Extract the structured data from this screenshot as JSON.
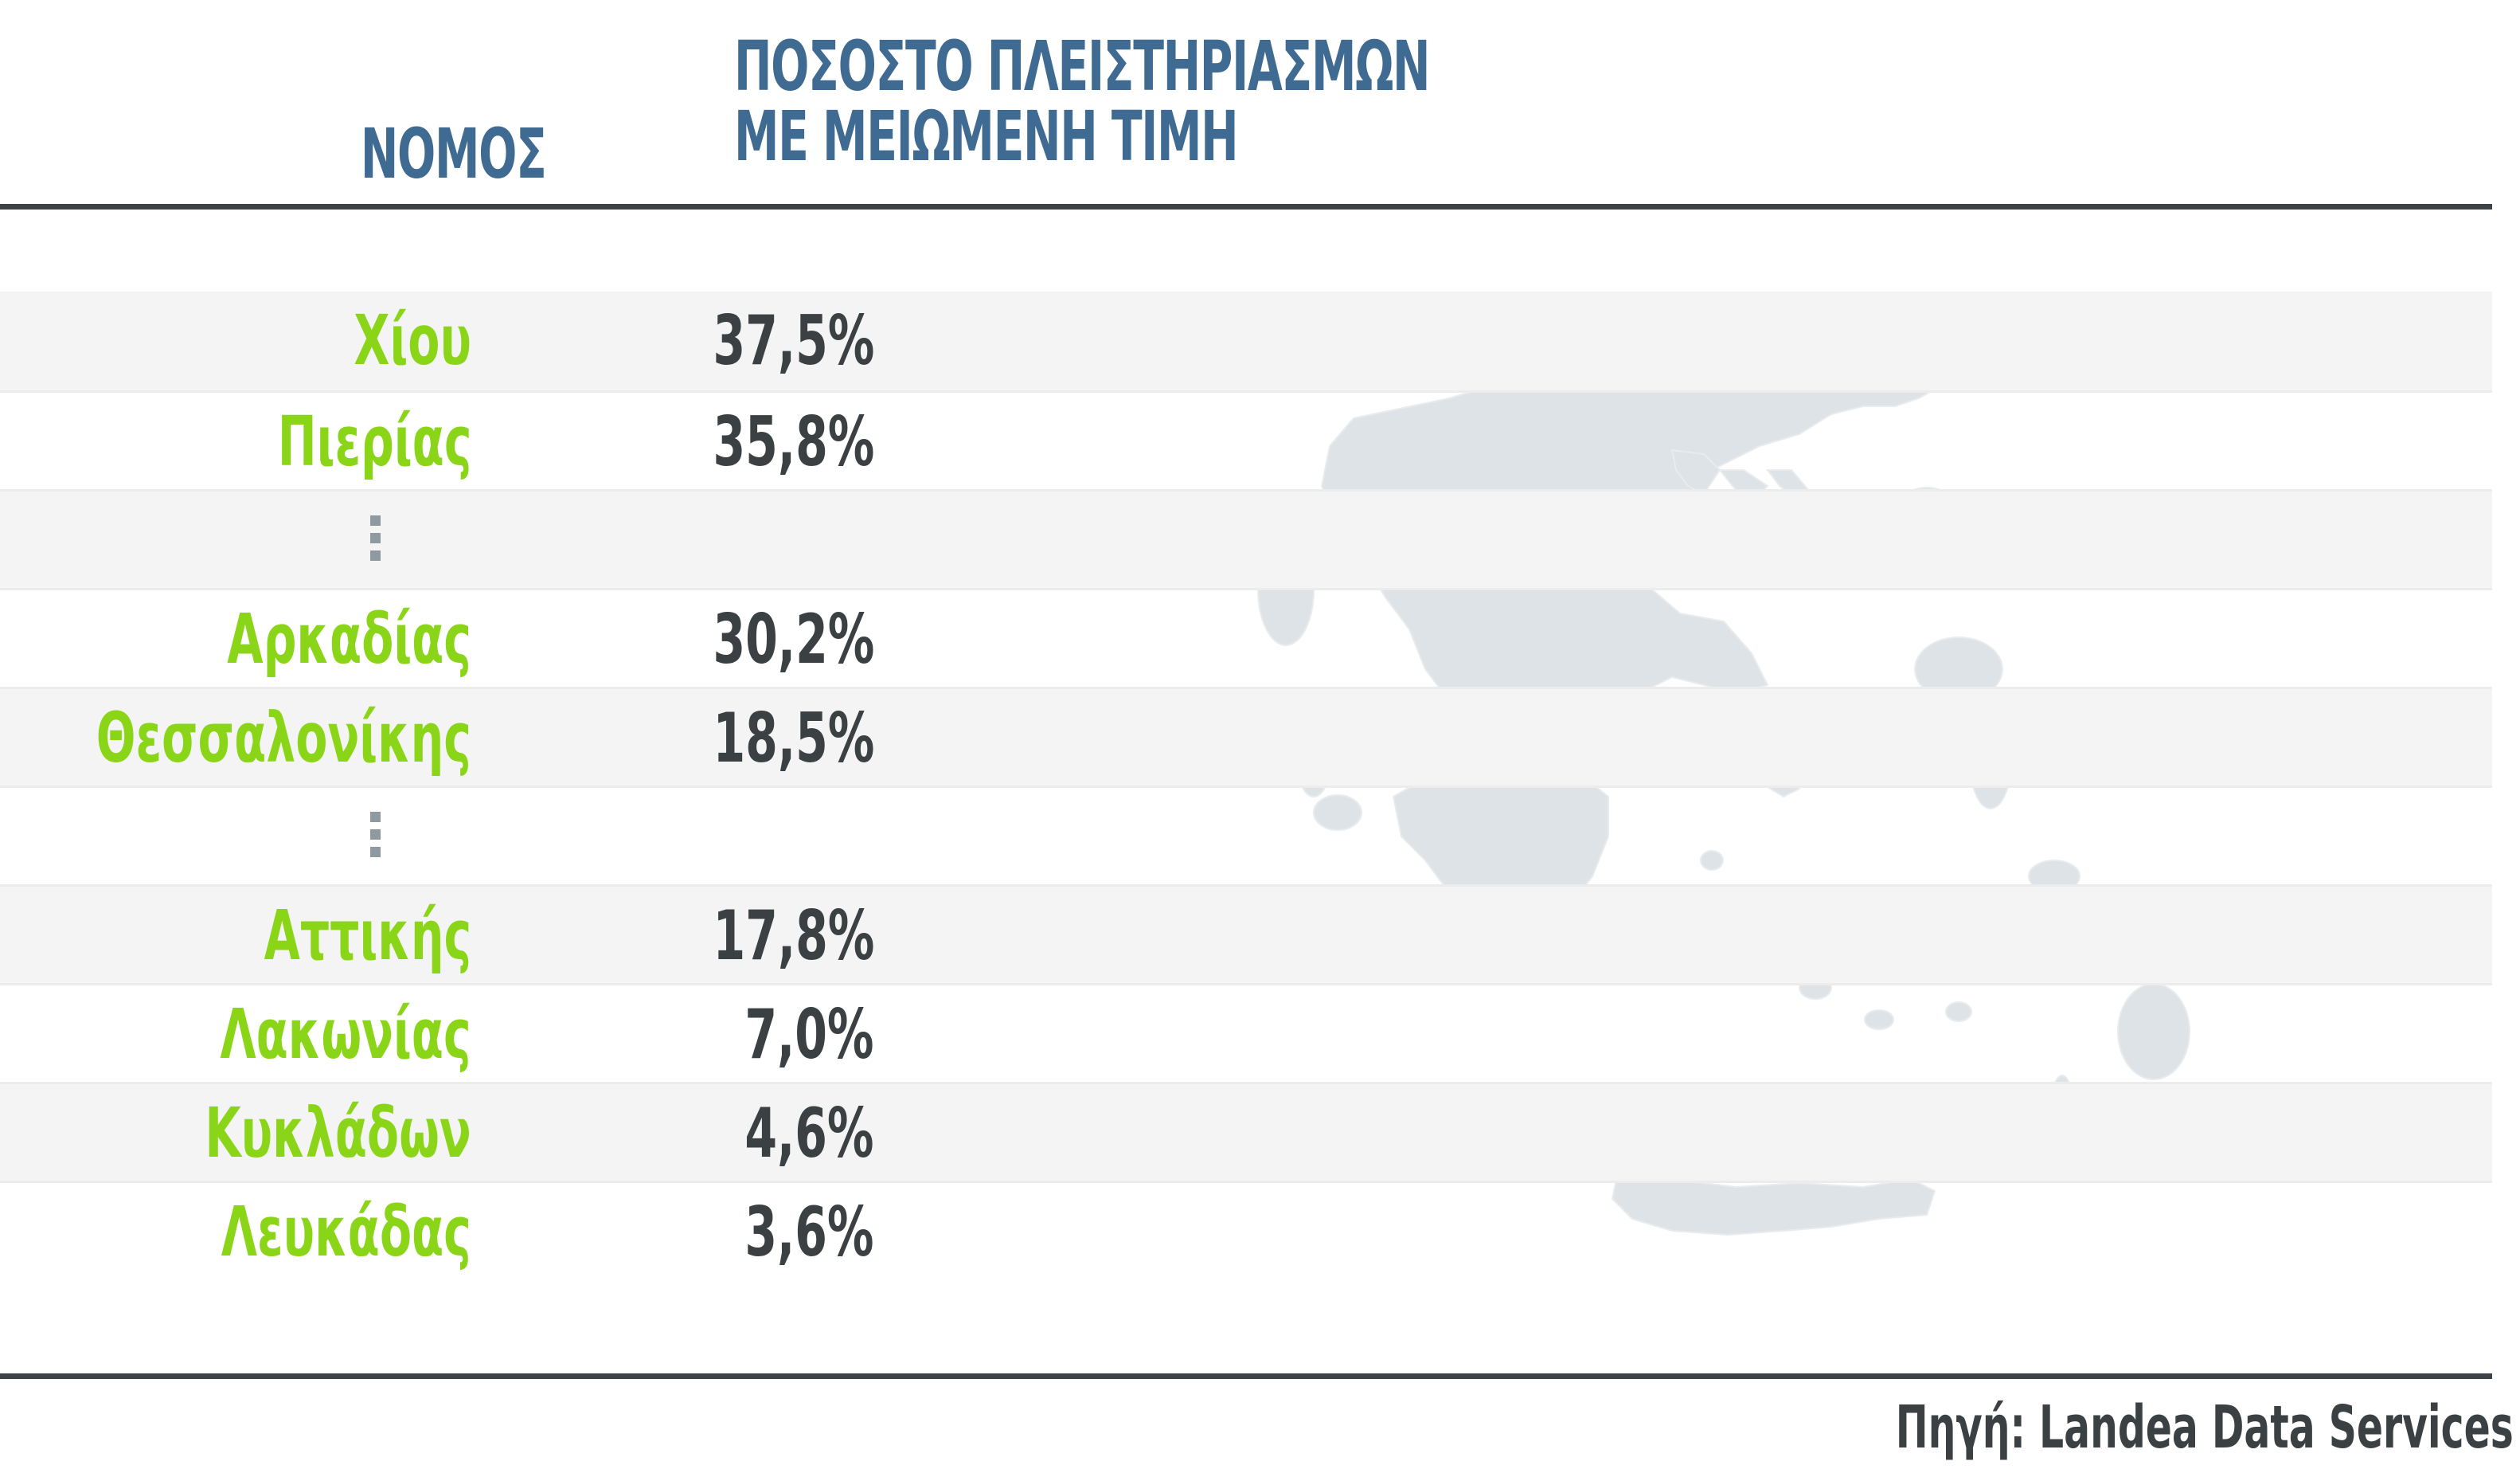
{
  "chart_data": {
    "type": "table",
    "columns": [
      "ΝΟΜΟΣ",
      "ΠΟΣΟΣΤΟ ΠΛΕΙΣΤΗΡΙΑΣΜΩΝ ΜΕ ΜΕΙΩΜΕΝΗ ΤΙΜΗ"
    ],
    "rows": [
      {
        "county": "Χίου",
        "value": "37,5%"
      },
      {
        "county": "Πιερίας",
        "value": "35,8%"
      },
      {
        "county": "Αρκαδίας",
        "value": "30,2%"
      },
      {
        "county": "Θεσσαλονίκης",
        "value": "18,5%"
      },
      {
        "county": "Αττικής",
        "value": "17,8%"
      },
      {
        "county": "Λακωνίας",
        "value": "7,0%"
      },
      {
        "county": "Κυκλάδων",
        "value": "4,6%"
      },
      {
        "county": "Λευκάδας",
        "value": "3,6%"
      }
    ],
    "values_percent": [
      37.5,
      35.8,
      30.2,
      18.5,
      17.8,
      7.0,
      4.6,
      3.6
    ],
    "gaps_after_rows": [
      2,
      4
    ]
  },
  "header": {
    "county_label": "ΝΟΜΟΣ",
    "value_label_line1": "ΠΟΣΟΣΤΟ ΠΛΕΙΣΤΗΡΙΑΣΜΩΝ",
    "value_label_line2": "ΜΕ ΜΕΙΩΜΕΝΗ ΤΙΜΗ"
  },
  "source": "Πηγή: Landea Data Services",
  "colors": {
    "header_blue": "#3f6a92",
    "county_green": "#8bd519",
    "value_dark": "#3b4043",
    "rule": "#3c4246",
    "row_shade": "#f4f4f4",
    "map_fill": "#dde3e6"
  },
  "icons": {
    "background": "greece-map-silhouette",
    "gap_marker": "vertical-ellipsis-icon"
  }
}
